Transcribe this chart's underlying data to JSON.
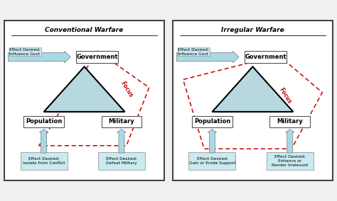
{
  "bg_color": "#f0f0f0",
  "panel_bg": "#ffffff",
  "title_left": "Conventional Warfare",
  "title_right": "Irregular Warfare",
  "triangle_fill": "#b8d8e0",
  "triangle_edge": "#000000",
  "arrow_fill": "#aad8e6",
  "arrow_edge": "#777777",
  "box_fill": "#c8eaf0",
  "box_edge": "#888888",
  "dashed_color": "#cc0000",
  "focus_color": "#cc0000",
  "label_govt": "Government",
  "label_pop": "Population",
  "label_mil": "Military",
  "effect_govt": "Effect Desired:\nInfluence Govt",
  "effect_pop_conv": "Effect Desired:\nIsolate from Conflict",
  "effect_mil_conv": "Effect Desired:\nDefeat Military",
  "effect_pop_irreg": "Effect Desired:\nGain or Erode Support",
  "effect_mil_irreg": "Effect Desired:\nEnhance or\nRender Irrelevant"
}
